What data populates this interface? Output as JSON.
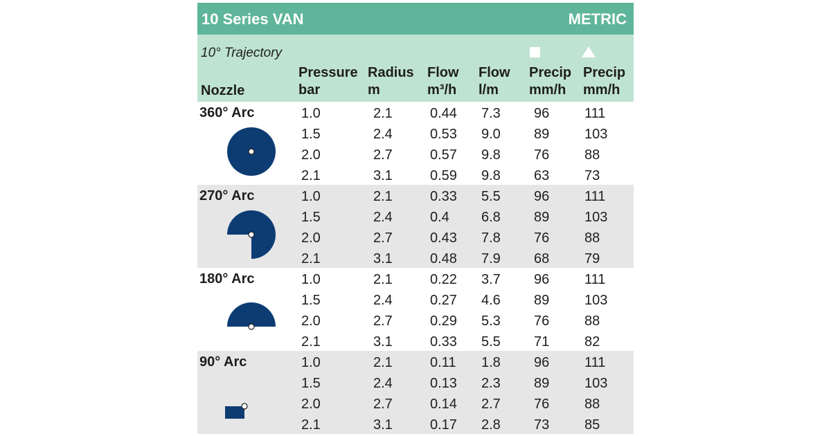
{
  "header": {
    "title": "10 Series VAN",
    "unit_system": "METRIC",
    "trajectory": "10° Trajectory"
  },
  "columns": [
    {
      "line1": "",
      "line2": "Nozzle"
    },
    {
      "line1": "Pressure",
      "line2": "bar"
    },
    {
      "line1": "Radius",
      "line2": "m"
    },
    {
      "line1": "Flow",
      "line2": "m³/h"
    },
    {
      "line1": "Flow",
      "line2": "l/m"
    },
    {
      "line1": "Precip",
      "line2": "mm/h"
    },
    {
      "line1": "Precip",
      "line2": "mm/h"
    }
  ],
  "symbols": {
    "square_icon": "square-spacing-icon",
    "triangle_icon": "triangle-spacing-icon"
  },
  "colors": {
    "title_bar": "#5fb59a",
    "header_bg": "#bfe3d2",
    "shaded_row": "#e6e6e6",
    "arc_fill": "#0d3c73"
  },
  "groups": [
    {
      "label": "360° Arc",
      "arc_degrees": 360,
      "rows": [
        [
          "1.0",
          "2.1",
          "0.44",
          "7.3",
          "96",
          "111"
        ],
        [
          "1.5",
          "2.4",
          "0.53",
          "9.0",
          "89",
          "103"
        ],
        [
          "2.0",
          "2.7",
          "0.57",
          "9.8",
          "76",
          "88"
        ],
        [
          "2.1",
          "3.1",
          "0.59",
          "9.8",
          "63",
          "73"
        ]
      ]
    },
    {
      "label": "270° Arc",
      "arc_degrees": 270,
      "rows": [
        [
          "1.0",
          "2.1",
          "0.33",
          "5.5",
          "96",
          "111"
        ],
        [
          "1.5",
          "2.4",
          "0.4",
          "6.8",
          "89",
          "103"
        ],
        [
          "2.0",
          "2.7",
          "0.43",
          "7.8",
          "76",
          "88"
        ],
        [
          "2.1",
          "3.1",
          "0.48",
          "7.9",
          "68",
          "79"
        ]
      ]
    },
    {
      "label": "180° Arc",
      "arc_degrees": 180,
      "rows": [
        [
          "1.0",
          "2.1",
          "0.22",
          "3.7",
          "96",
          "111"
        ],
        [
          "1.5",
          "2.4",
          "0.27",
          "4.6",
          "89",
          "103"
        ],
        [
          "2.0",
          "2.7",
          "0.29",
          "5.3",
          "76",
          "88"
        ],
        [
          "2.1",
          "3.1",
          "0.33",
          "5.5",
          "71",
          "82"
        ]
      ]
    },
    {
      "label": "90° Arc",
      "arc_degrees": 90,
      "rows": [
        [
          "1.0",
          "2.1",
          "0.11",
          "1.8",
          "96",
          "111"
        ],
        [
          "1.5",
          "2.4",
          "0.13",
          "2.3",
          "89",
          "103"
        ],
        [
          "2.0",
          "2.7",
          "0.14",
          "2.7",
          "76",
          "88"
        ],
        [
          "2.1",
          "3.1",
          "0.17",
          "2.8",
          "73",
          "85"
        ]
      ]
    }
  ]
}
